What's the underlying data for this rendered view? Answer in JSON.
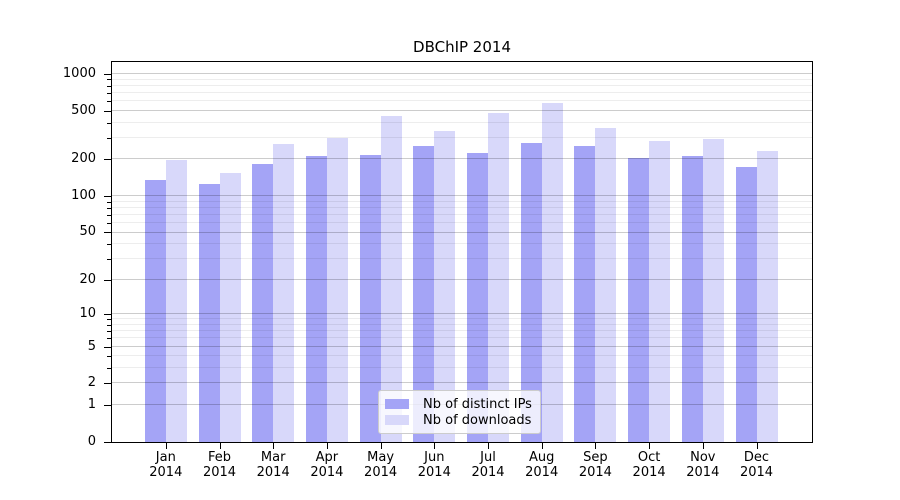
{
  "chart_data": {
    "type": "bar",
    "title": "DBChIP 2014",
    "categories": [
      "Jan",
      "Feb",
      "Mar",
      "Apr",
      "May",
      "Jun",
      "Jul",
      "Aug",
      "Sep",
      "Oct",
      "Nov",
      "Dec"
    ],
    "category_year": "2014",
    "series": [
      {
        "name": "Nb of distinct IPs",
        "color": "#a4a4f6",
        "values": [
          137,
          125,
          183,
          215,
          219,
          258,
          228,
          272,
          258,
          205,
          212,
          174
        ]
      },
      {
        "name": "Nb of downloads",
        "color": "#d8d8fa",
        "values": [
          197,
          155,
          270,
          300,
          450,
          340,
          483,
          583,
          360,
          281,
          296,
          235
        ]
      }
    ],
    "yscale": "log1p",
    "y_axis_max": 1250,
    "y_ticks": [
      0,
      1,
      2,
      5,
      10,
      20,
      50,
      100,
      200,
      500,
      1000
    ],
    "y_minor_ticks": [
      3,
      4,
      6,
      7,
      8,
      9,
      30,
      40,
      60,
      70,
      80,
      90,
      300,
      400,
      600,
      700,
      800,
      900
    ],
    "xlabel": "",
    "ylabel": "",
    "legend_position": "lower center",
    "grid": "both",
    "colors": {
      "major_grid": "rgba(0,0,0,0.20)",
      "minor_grid": "rgba(0,0,0,0.07)",
      "axis": "#000000",
      "background": "#ffffff"
    }
  }
}
